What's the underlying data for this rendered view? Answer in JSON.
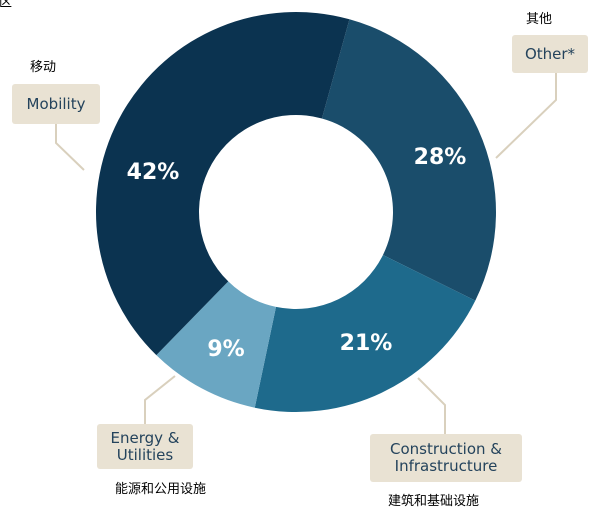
{
  "chart_data": {
    "type": "donut",
    "title": "地区",
    "categories": [
      "Other*",
      "Construction &\nInfrastructure",
      "Energy &\nUtilities",
      "Mobility"
    ],
    "category_translations": [
      "其他",
      "建筑和基础设施",
      "能源和公用设施",
      "移动"
    ],
    "values": [
      28,
      21,
      9,
      42
    ],
    "value_labels": [
      "28%",
      "21%",
      "9%",
      "42%"
    ],
    "colors": [
      "#1a4d6b",
      "#1e6a8c",
      "#6aa6c2",
      "#0b3350"
    ]
  }
}
